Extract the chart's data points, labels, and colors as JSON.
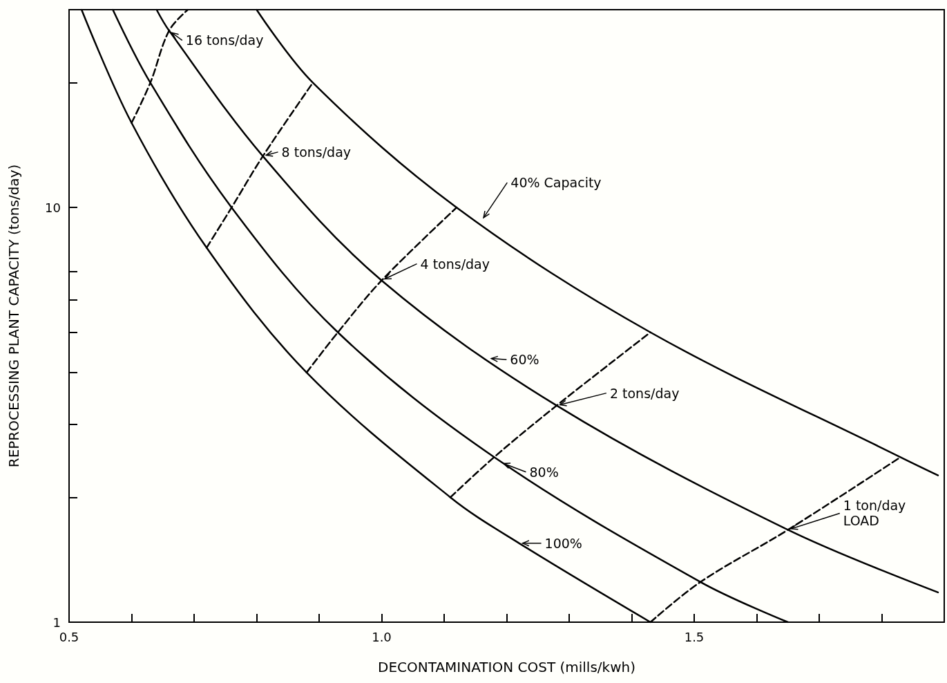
{
  "chart_data": {
    "type": "line",
    "xlabel": "DECONTAMINATION COST (mills/kwh)",
    "ylabel": "REPROCESSING PLANT CAPACITY (tons/day)",
    "log": "y",
    "grid": false,
    "marker": "none",
    "xlim": [
      0.5,
      1.9
    ],
    "xticks": [
      0.5,
      {
        "value": 0.6,
        "label": null
      },
      {
        "value": 0.7,
        "label": null
      },
      {
        "value": 0.8,
        "label": null
      },
      {
        "value": 0.9,
        "label": null
      },
      {
        "value": 1,
        "label": "1.0"
      },
      {
        "value": 1.1,
        "label": null
      },
      {
        "value": 1.2,
        "label": null
      },
      {
        "value": 1.3,
        "label": null
      },
      {
        "value": 1.4,
        "label": null
      },
      1.5,
      {
        "value": 1.6,
        "label": null
      },
      {
        "value": 1.7,
        "label": null
      },
      {
        "value": 1.8,
        "label": null
      }
    ],
    "ylim": [
      1,
      30
    ],
    "yticks": [
      1,
      {
        "value": 2,
        "label": null
      },
      {
        "value": 3,
        "label": null
      },
      {
        "value": 4,
        "label": null
      },
      {
        "value": 5,
        "label": null
      },
      {
        "value": 6,
        "label": null
      },
      {
        "value": 7,
        "label": null
      },
      10,
      {
        "value": 20,
        "label": null
      }
    ],
    "series": [
      {
        "color": "#000000",
        "line_style": "solid",
        "x": [
          0.52,
          0.6,
          0.72,
          0.88,
          1.11,
          1.22,
          1.43
        ],
        "values": [
          30,
          16,
          8,
          4,
          2,
          1.55,
          1
        ]
      },
      {
        "color": "#000000",
        "line_style": "solid",
        "x": [
          0.57,
          0.63,
          0.76,
          0.93,
          1.18,
          1.51,
          1.65
        ],
        "values": [
          30,
          20,
          10,
          5,
          2.5,
          1.25,
          1
        ]
      },
      {
        "color": "#000000",
        "line_style": "solid",
        "x": [
          0.64,
          0.66,
          0.81,
          1.0,
          1.28,
          1.65,
          1.89
        ],
        "values": [
          30,
          26.7,
          13.3,
          6.67,
          3.33,
          1.67,
          1.18
        ]
      },
      {
        "color": "#000000",
        "line_style": "solid",
        "x": [
          0.8,
          0.89,
          1.12,
          1.43,
          1.83,
          1.89
        ],
        "values": [
          30,
          20,
          10,
          5,
          2.5,
          2.26
        ]
      },
      {
        "color": "#000000",
        "line_style": "dashed",
        "x": [
          0.6,
          0.63,
          0.66,
          0.69
        ],
        "values": [
          16,
          20,
          26.7,
          30
        ]
      },
      {
        "color": "#000000",
        "line_style": "dashed",
        "x": [
          0.72,
          0.76,
          0.81,
          0.89
        ],
        "values": [
          8,
          10,
          13.3,
          20
        ]
      },
      {
        "color": "#000000",
        "line_style": "dashed",
        "x": [
          0.88,
          0.93,
          1.0,
          1.12
        ],
        "values": [
          4,
          5,
          6.67,
          10
        ]
      },
      {
        "color": "#000000",
        "line_style": "dashed",
        "x": [
          1.11,
          1.18,
          1.28,
          1.43
        ],
        "values": [
          2,
          2.5,
          3.33,
          5
        ]
      },
      {
        "color": "#000000",
        "line_style": "dashed",
        "x": [
          1.43,
          1.51,
          1.65,
          1.83
        ],
        "values": [
          1,
          1.25,
          1.67,
          2.5
        ]
      }
    ],
    "annotations": [
      {
        "text": "16 tons/day",
        "x": 0.66,
        "y": 26.7
      },
      {
        "text": "8 tons/day",
        "x": 0.81,
        "y": 13.3
      },
      {
        "text": "4 tons/day",
        "x": 1.0,
        "y": 6.67
      },
      {
        "text": "2 tons/day",
        "x": 1.28,
        "y": 3.33
      },
      {
        "text": "1 ton/day\nLOAD",
        "x": 1.65,
        "y": 1.67
      },
      {
        "text": "40% Capacity",
        "x": 1.16,
        "y": 9.3
      },
      {
        "text": "60%",
        "x": 1.17,
        "y": 4.33
      },
      {
        "text": "80%",
        "x": 1.19,
        "y": 2.43
      },
      {
        "text": "100%",
        "x": 1.22,
        "y": 1.55
      }
    ]
  }
}
